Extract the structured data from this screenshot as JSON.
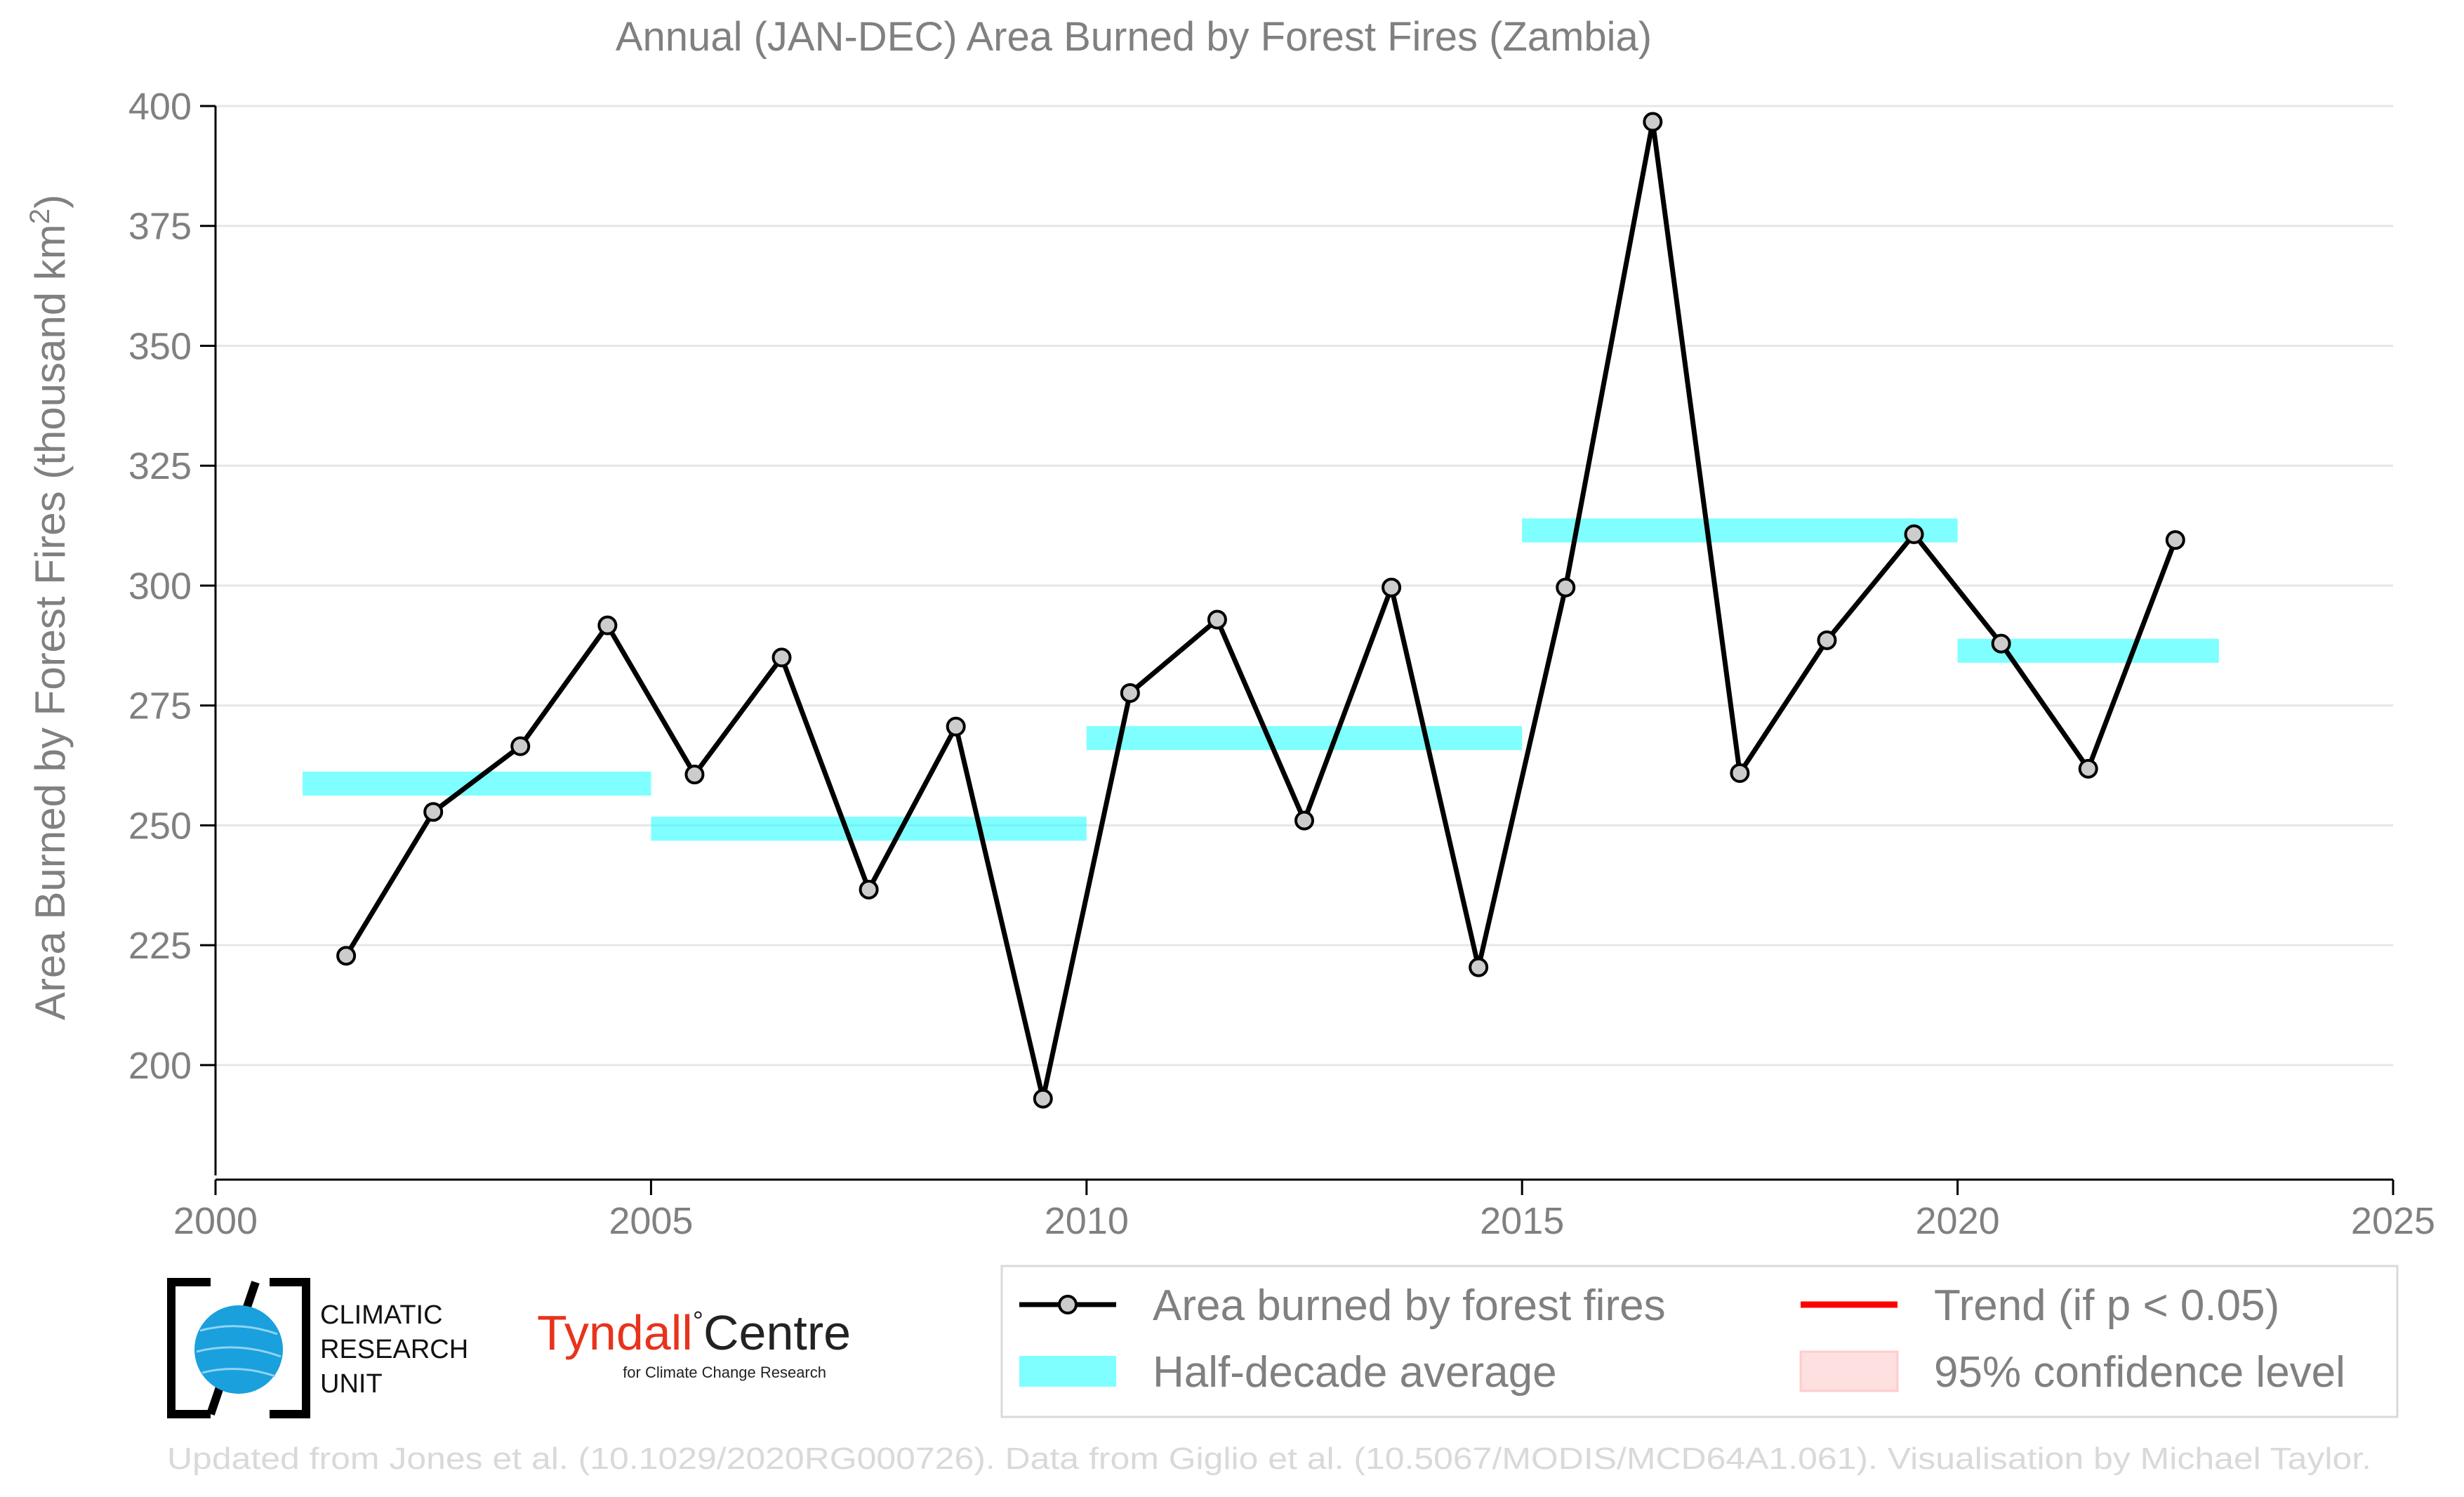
{
  "chart_data": {
    "type": "line",
    "title": "Annual (JAN-DEC) Area Burned by Forest Fires (Zambia)",
    "ylabel_main": "Area Burned by Forest Fires (thousand km",
    "ylabel_sup": "2",
    "ylabel_close": ")",
    "xlim": [
      2000,
      2025
    ],
    "ylim": [
      177,
      400
    ],
    "x_ticks": [
      2000,
      2005,
      2010,
      2015,
      2020,
      2025
    ],
    "y_ticks": [
      200,
      225,
      250,
      275,
      300,
      325,
      350,
      375,
      400
    ],
    "grid": true,
    "series": [
      {
        "name": "Area burned by forest fires",
        "color": "#000000",
        "marker_fill": "#cccccc",
        "x": [
          2001.5,
          2002.5,
          2003.5,
          2004.5,
          2005.5,
          2006.5,
          2007.5,
          2008.5,
          2009.5,
          2010.5,
          2011.5,
          2012.5,
          2013.5,
          2014.5,
          2015.5,
          2016.5,
          2017.5,
          2018.5,
          2019.5,
          2020.5,
          2021.5,
          2022.5
        ],
        "y": [
          222.8,
          252.8,
          266.5,
          291.7,
          260.6,
          285.0,
          236.6,
          270.6,
          193.0,
          277.6,
          292.9,
          251.0,
          299.6,
          220.4,
          299.6,
          396.7,
          260.9,
          288.6,
          310.7,
          287.9,
          261.8,
          309.5
        ]
      }
    ],
    "half_decade_average": {
      "name": "Half-decade average",
      "color": "#00ffff",
      "segments": [
        {
          "x0": 2001,
          "x1": 2005,
          "y": 258.7
        },
        {
          "x0": 2005,
          "x1": 2010,
          "y": 249.3
        },
        {
          "x0": 2010,
          "x1": 2015,
          "y": 268.2
        },
        {
          "x0": 2015,
          "x1": 2020,
          "y": 311.5
        },
        {
          "x0": 2020,
          "x1": 2023,
          "y": 286.4
        }
      ]
    },
    "legend": {
      "placement": "bottom-right",
      "items": [
        {
          "label": "Area burned by forest fires",
          "kind": "line-marker",
          "color": "#000000"
        },
        {
          "label": "Trend (if p < 0.05)",
          "kind": "line",
          "color": "#ff0000"
        },
        {
          "label": "Half-decade average",
          "kind": "band",
          "color": "#00ffff"
        },
        {
          "label": "95% confidence level",
          "kind": "patch",
          "color": "#ffcccc"
        }
      ]
    }
  },
  "logos": {
    "cru_lines": [
      "CLIMATIC",
      "RESEARCH",
      "UNIT"
    ],
    "tyndall_name": "Tyndall",
    "tyndall_degree": "°",
    "tyndall_centre": "Centre",
    "tyndall_sub": "for Climate Change Research",
    "tyndall_color": "#e8331c"
  },
  "footer": "Updated from Jones et al. (10.1029/2020RG000726). Data from Giglio et al. (10.5067/MODIS/MCD64A1.061). Visualisation by Michael Taylor."
}
